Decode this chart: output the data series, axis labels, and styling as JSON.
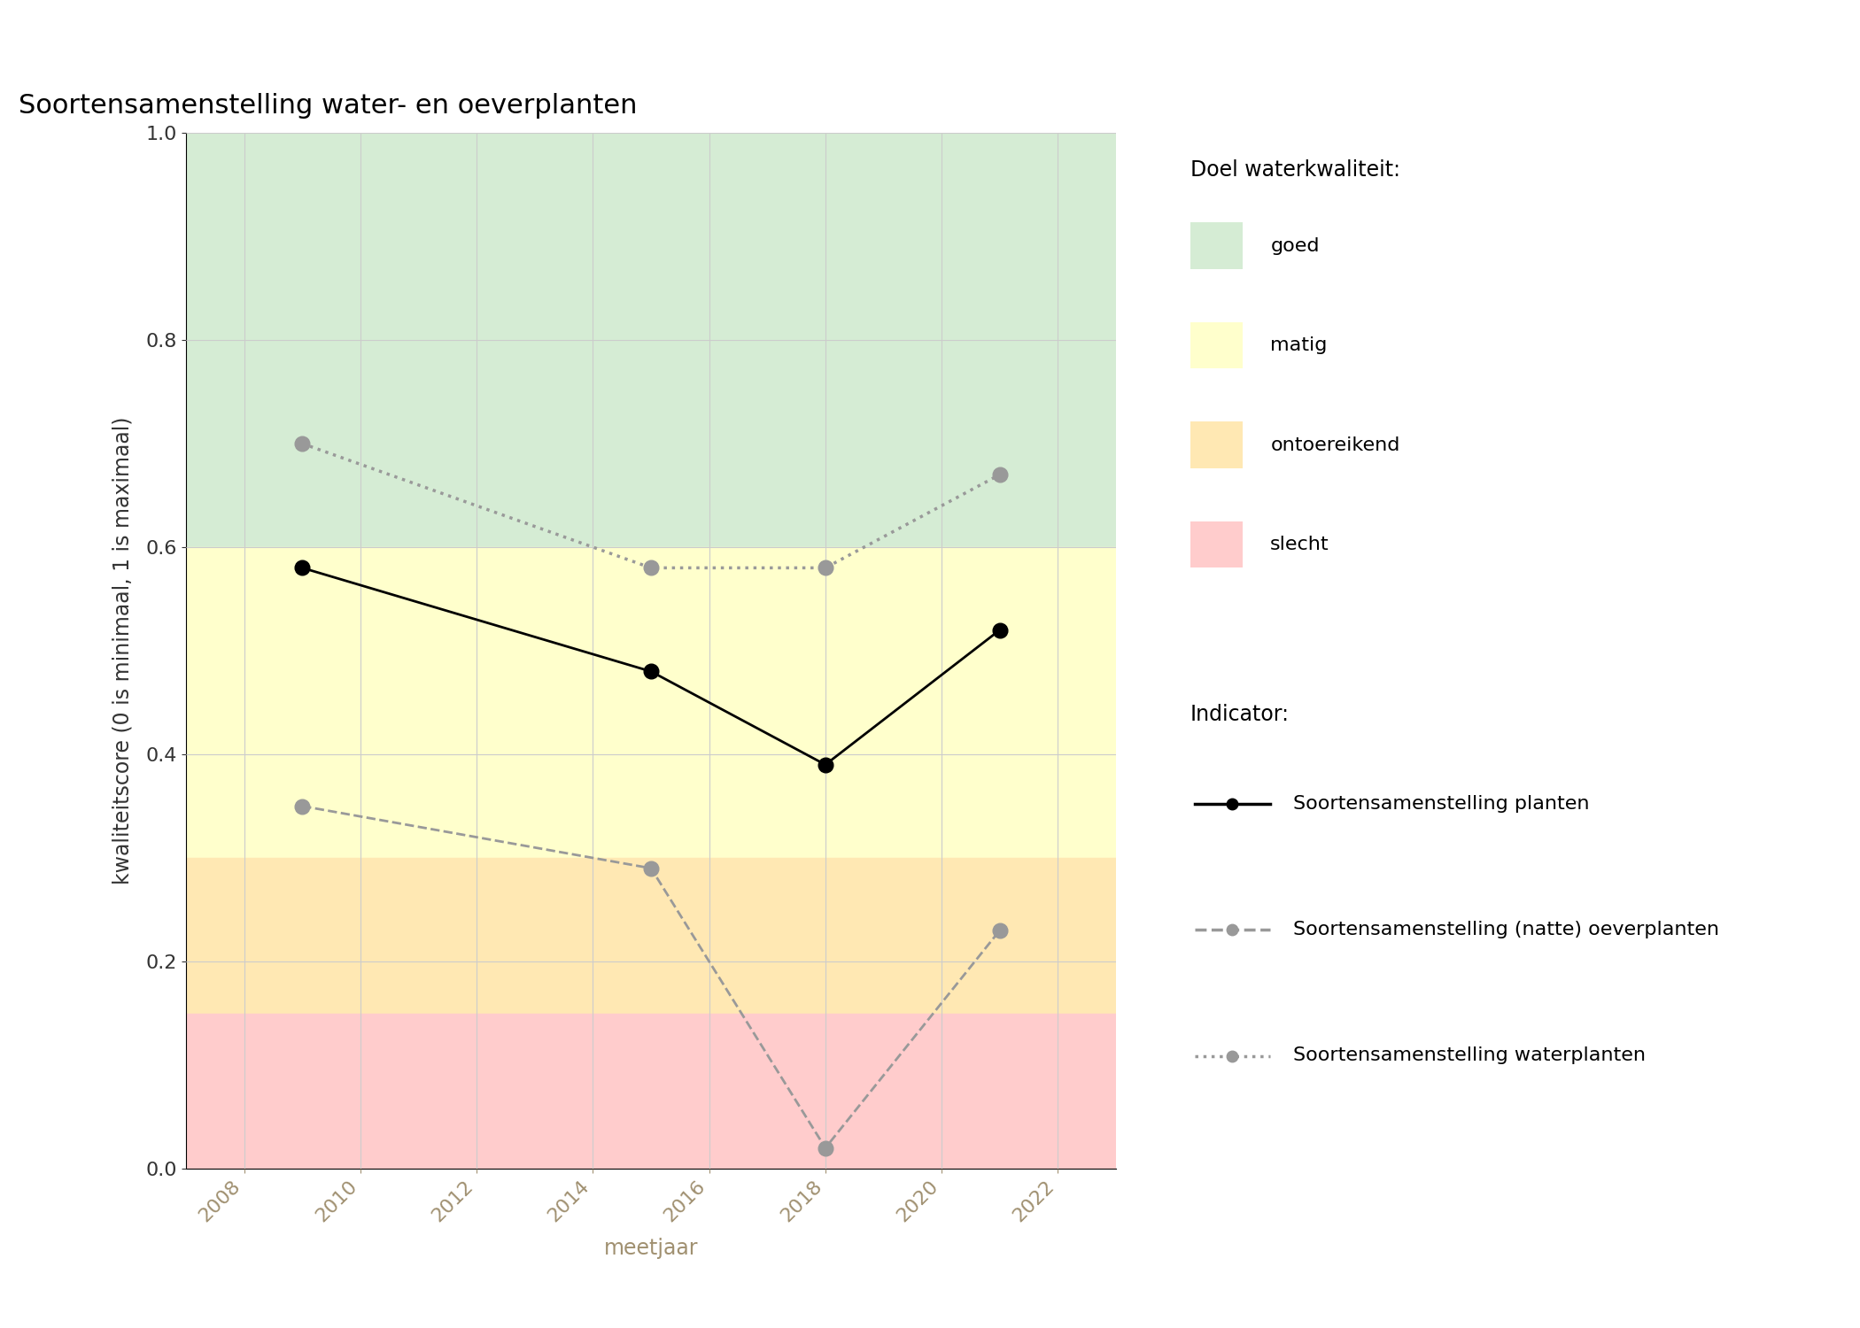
{
  "title": "Soortensamenstelling water- en oeverplanten",
  "xlabel": "meetjaar",
  "ylabel": "kwaliteitscore (0 is minimaal, 1 is maximaal)",
  "xlim": [
    2007,
    2023
  ],
  "ylim": [
    0.0,
    1.0
  ],
  "xticks": [
    2008,
    2010,
    2012,
    2014,
    2016,
    2018,
    2020,
    2022
  ],
  "yticks": [
    0.0,
    0.2,
    0.4,
    0.6,
    0.8,
    1.0
  ],
  "bg_color": "#ffffff",
  "plot_bg": "#ffffff",
  "background_bands": [
    {
      "ymin": 0.6,
      "ymax": 1.0,
      "color": "#d5ecd4",
      "label": "goed"
    },
    {
      "ymin": 0.3,
      "ymax": 0.6,
      "color": "#ffffcc",
      "label": "matig"
    },
    {
      "ymin": 0.15,
      "ymax": 0.3,
      "color": "#ffe8b3",
      "label": "ontoereikend"
    },
    {
      "ymin": 0.0,
      "ymax": 0.15,
      "color": "#ffcccc",
      "label": "slecht"
    }
  ],
  "series": [
    {
      "name": "Soortensamenstelling planten",
      "x": [
        2009,
        2015,
        2018,
        2021
      ],
      "y": [
        0.58,
        0.48,
        0.39,
        0.52
      ],
      "color": "#000000",
      "linestyle": "solid",
      "marker": "o",
      "markersize": 12,
      "linewidth": 2.0,
      "zorder": 3
    },
    {
      "name": "Soortensamenstelling (natte) oeverplanten",
      "x": [
        2009,
        2015,
        2018,
        2021
      ],
      "y": [
        0.35,
        0.29,
        0.02,
        0.23
      ],
      "color": "#999999",
      "linestyle": "dashed",
      "marker": "o",
      "markersize": 12,
      "linewidth": 2.0,
      "zorder": 3
    },
    {
      "name": "Soortensamenstelling waterplanten",
      "x": [
        2009,
        2015,
        2018,
        2021
      ],
      "y": [
        0.7,
        0.58,
        0.58,
        0.67
      ],
      "color": "#999999",
      "linestyle": "dotted",
      "marker": "o",
      "markersize": 12,
      "linewidth": 2.5,
      "zorder": 3
    }
  ],
  "legend_quality_title": "Doel waterkwaliteit:",
  "legend_indicator_title": "Indicator:",
  "grid_color": "#cccccc",
  "grid_linewidth": 0.8,
  "tick_color": "#a09070",
  "label_color": "#a09070",
  "title_fontsize": 22,
  "axis_label_fontsize": 17,
  "tick_fontsize": 16,
  "legend_fontsize": 16
}
